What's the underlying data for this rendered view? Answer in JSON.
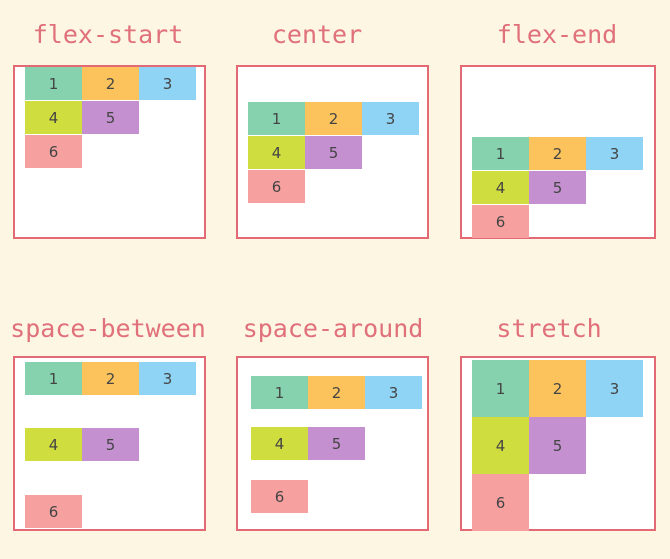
{
  "colors": {
    "item1": "#86d1ae",
    "item2": "#fcc35c",
    "item3": "#8fd4f5",
    "item4": "#cfdd3f",
    "item5": "#c490d0",
    "item6": "#f6a0a0",
    "title": "#e0707a",
    "border": "#e36a74",
    "background": "#fdf6e3"
  },
  "items": [
    "1",
    "2",
    "3",
    "4",
    "5",
    "6"
  ],
  "panels": [
    {
      "title": "flex-start"
    },
    {
      "title": "center"
    },
    {
      "title": "flex-end"
    },
    {
      "title": "space-between"
    },
    {
      "title": "space-around"
    },
    {
      "title": "stretch"
    }
  ]
}
